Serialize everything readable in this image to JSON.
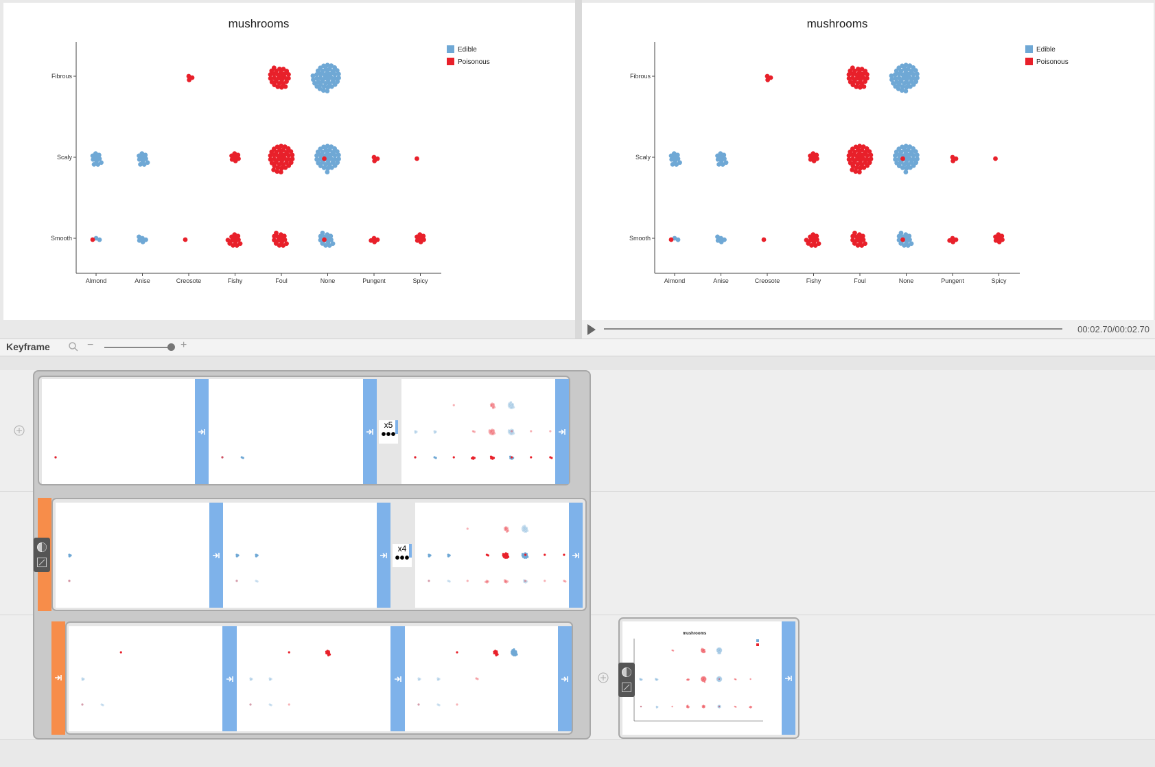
{
  "app": {
    "chart_title": "mushrooms",
    "time_readout": "00:02.70/00:02.70",
    "keyframe_title": "Keyframe"
  },
  "legend": {
    "edible": "Edible",
    "poisonous": "Poisonous",
    "edible_color": "#6fa8d5",
    "poisonous_color": "#e8202a"
  },
  "chart_data": {
    "type": "scatter",
    "title": "mushrooms",
    "categories": [
      "Almond",
      "Anise",
      "Creosote",
      "Fishy",
      "Foul",
      "None",
      "Pungent",
      "Spicy"
    ],
    "y_categories": [
      "Fibrous",
      "Scaly",
      "Smooth"
    ],
    "series": [
      {
        "name": "Edible",
        "color": "#6fa8d5"
      },
      {
        "name": "Poisonous",
        "color": "#e8202a"
      }
    ],
    "clusters": [
      {
        "x": "Creosote",
        "y": "Fibrous",
        "class": "Poisonous",
        "count": 3
      },
      {
        "x": "Foul",
        "y": "Fibrous",
        "class": "Poisonous",
        "count": 28
      },
      {
        "x": "None",
        "y": "Fibrous",
        "class": "Edible",
        "count": 44
      },
      {
        "x": "Almond",
        "y": "Scaly",
        "class": "Edible",
        "count": 10
      },
      {
        "x": "Anise",
        "y": "Scaly",
        "class": "Edible",
        "count": 10
      },
      {
        "x": "Fishy",
        "y": "Scaly",
        "class": "Poisonous",
        "count": 7
      },
      {
        "x": "Foul",
        "y": "Scaly",
        "class": "Poisonous",
        "count": 40
      },
      {
        "x": "None",
        "y": "Scaly",
        "class": "Edible",
        "count": 38
      },
      {
        "x": "None",
        "y": "Scaly",
        "class": "Poisonous",
        "count": 1
      },
      {
        "x": "Pungent",
        "y": "Scaly",
        "class": "Poisonous",
        "count": 3
      },
      {
        "x": "Spicy",
        "y": "Scaly",
        "class": "Poisonous",
        "count": 1
      },
      {
        "x": "Almond",
        "y": "Smooth",
        "class": "Edible",
        "count": 2
      },
      {
        "x": "Almond",
        "y": "Smooth",
        "class": "Poisonous",
        "count": 1
      },
      {
        "x": "Anise",
        "y": "Smooth",
        "class": "Edible",
        "count": 5
      },
      {
        "x": "Creosote",
        "y": "Smooth",
        "class": "Poisonous",
        "count": 1
      },
      {
        "x": "Fishy",
        "y": "Smooth",
        "class": "Poisonous",
        "count": 12
      },
      {
        "x": "Foul",
        "y": "Smooth",
        "class": "Poisonous",
        "count": 14
      },
      {
        "x": "None",
        "y": "Smooth",
        "class": "Edible",
        "count": 14
      },
      {
        "x": "None",
        "y": "Smooth",
        "class": "Poisonous",
        "count": 1
      },
      {
        "x": "Pungent",
        "y": "Smooth",
        "class": "Poisonous",
        "count": 4
      },
      {
        "x": "Spicy",
        "y": "Smooth",
        "class": "Poisonous",
        "count": 7
      }
    ],
    "legend_position": "top-right",
    "grid": false
  },
  "timeline": {
    "rows": [
      {
        "repeat_label": "x5",
        "frames": 3
      },
      {
        "repeat_label": "x4",
        "frames": 3
      },
      {
        "frames": 3
      }
    ],
    "extra_frame_title": "mushrooms"
  },
  "icons": {
    "play": "play-icon",
    "zoom": "search-icon",
    "zoom_out": "minus-icon",
    "zoom_in": "plus-icon",
    "add": "add-circle-icon",
    "transition": "arrow-into-bar-icon",
    "tools": [
      "contrast-icon",
      "edit-icon"
    ]
  }
}
